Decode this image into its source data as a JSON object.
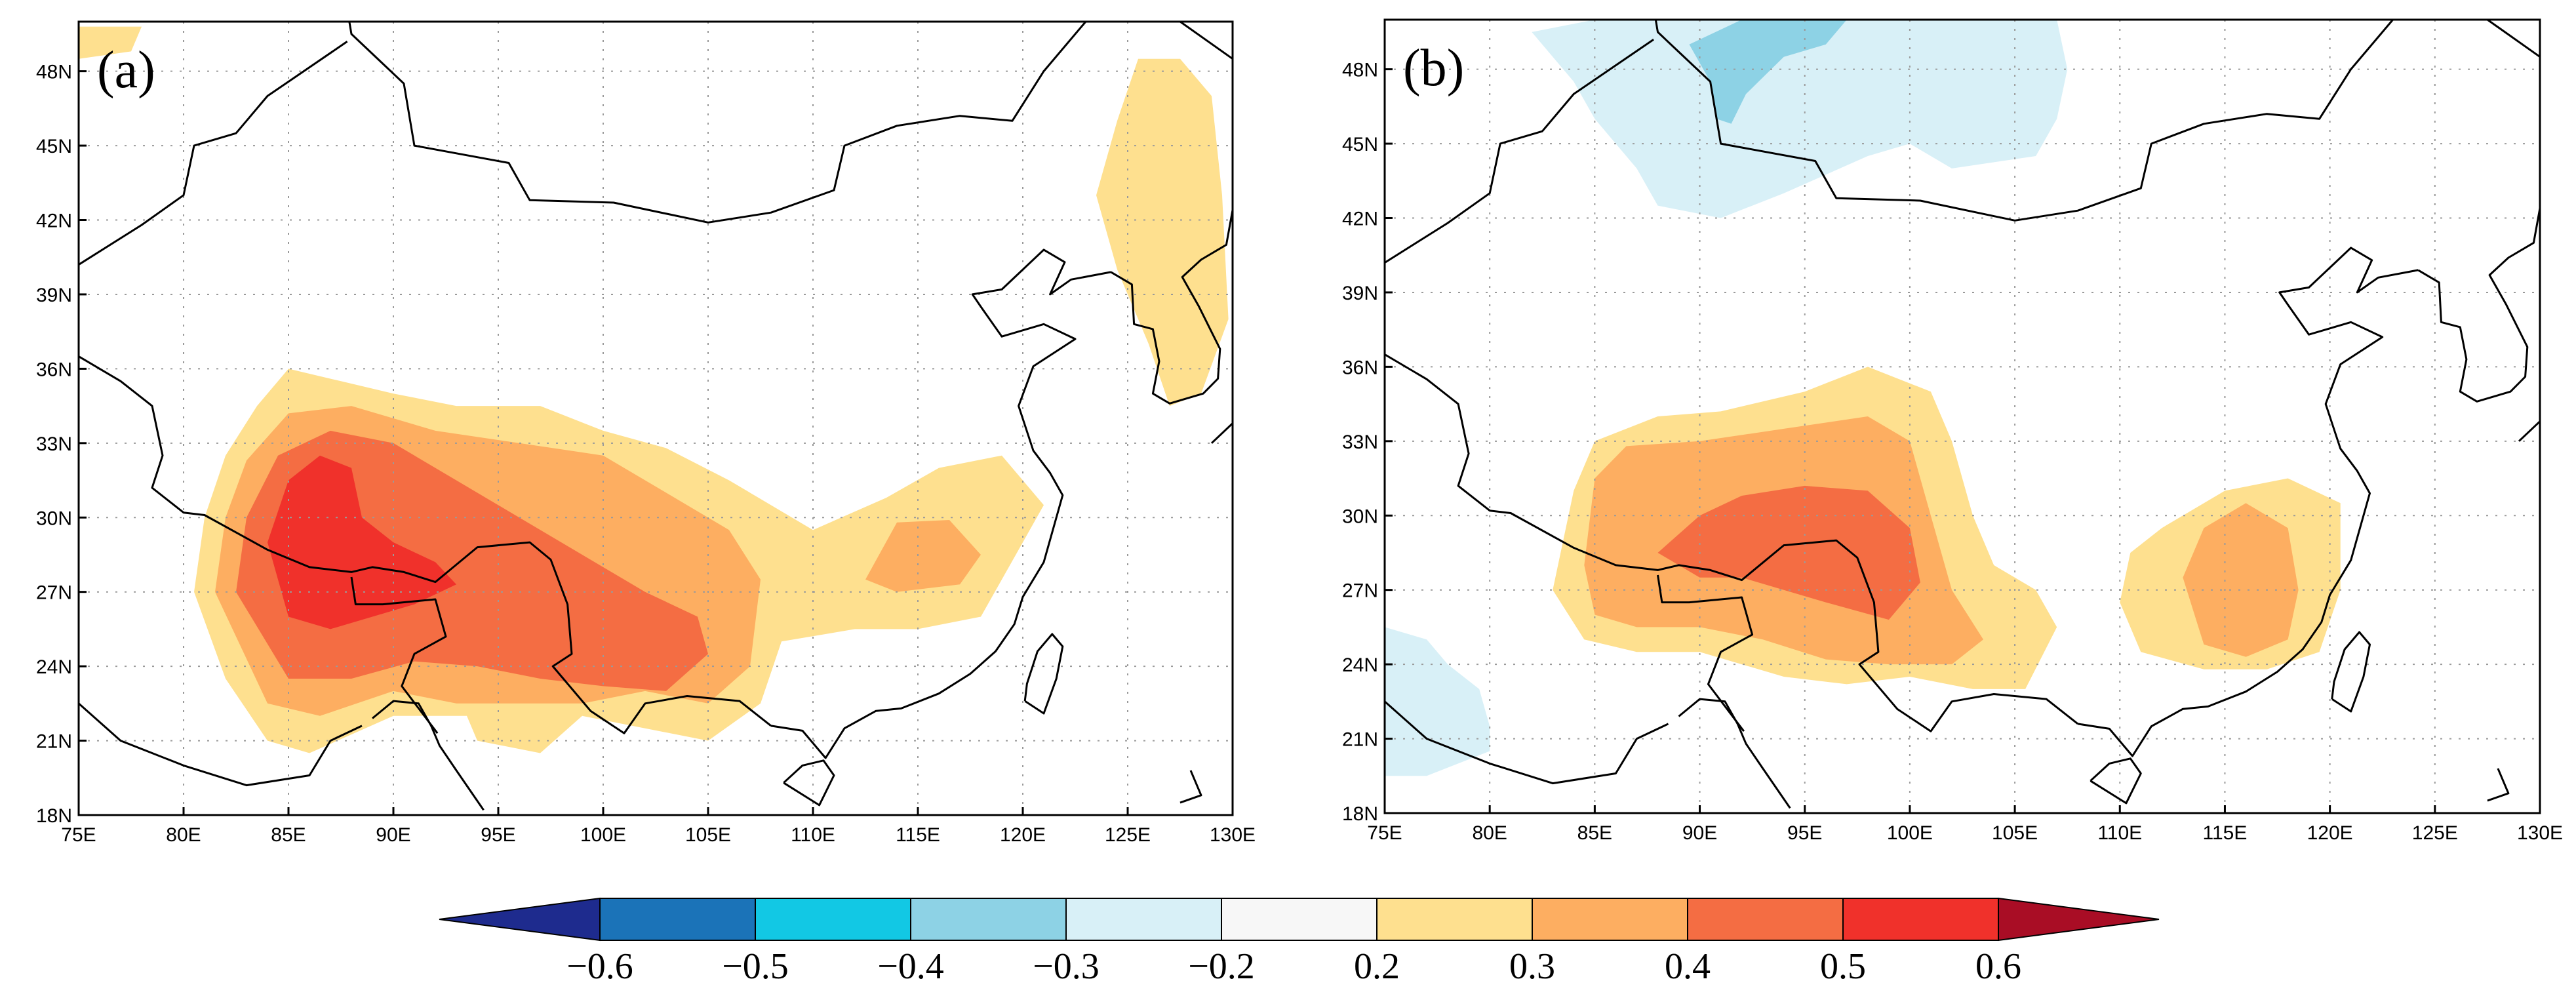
{
  "chart_data": [
    {
      "type": "heatmap",
      "panel_label": "(a)",
      "map_region": "China and surrounding region",
      "x_ticks": [
        "75E",
        "80E",
        "85E",
        "90E",
        "95E",
        "100E",
        "105E",
        "110E",
        "115E",
        "120E",
        "125E",
        "130E"
      ],
      "y_ticks": [
        "18N",
        "21N",
        "24N",
        "27N",
        "30N",
        "33N",
        "36N",
        "39N",
        "42N",
        "45N",
        "48N"
      ],
      "xlim": [
        75,
        130
      ],
      "ylim": [
        18,
        50
      ],
      "grid": true,
      "shaded_regions": [
        {
          "name": "region-a-0.2-0.3-tibet",
          "level": 0.2,
          "lonlat": [
            [
              80.5,
              27
            ],
            [
              81,
              30
            ],
            [
              82,
              32.5
            ],
            [
              83.5,
              34.5
            ],
            [
              85,
              36
            ],
            [
              87.5,
              35.5
            ],
            [
              90,
              35
            ],
            [
              93,
              34.5
            ],
            [
              97,
              34.5
            ],
            [
              100,
              33.5
            ],
            [
              103,
              32.8
            ],
            [
              106,
              31.5
            ],
            [
              110,
              29.5
            ],
            [
              113.5,
              30.8
            ],
            [
              116,
              32
            ],
            [
              119,
              32.5
            ],
            [
              121,
              30.5
            ],
            [
              120,
              29
            ],
            [
              118,
              26
            ],
            [
              115,
              25.5
            ],
            [
              112,
              25.5
            ],
            [
              108.5,
              25
            ],
            [
              107.5,
              22.5
            ],
            [
              105,
              21
            ],
            [
              102,
              21.5
            ],
            [
              99,
              22
            ],
            [
              97,
              20.5
            ],
            [
              94,
              21
            ],
            [
              93.5,
              22
            ],
            [
              90,
              22
            ],
            [
              86,
              20.5
            ],
            [
              84,
              21
            ],
            [
              82,
              23.5
            ]
          ]
        },
        {
          "name": "region-a-0.2-0.3-north",
          "level": 0.2,
          "lonlat": [
            [
              125.5,
              48.5
            ],
            [
              127.5,
              48.5
            ],
            [
              129,
              47
            ],
            [
              129.5,
              43
            ],
            [
              129.8,
              38
            ],
            [
              128.5,
              35
            ],
            [
              127,
              34.5
            ],
            [
              126,
              37
            ],
            [
              124.5,
              40
            ],
            [
              123.5,
              43
            ],
            [
              124.5,
              46
            ]
          ]
        },
        {
          "name": "region-a-0.2-0.3-corner",
          "level": 0.2,
          "lonlat": [
            [
              75,
              49.8
            ],
            [
              78,
              49.8
            ],
            [
              77.5,
              48.8
            ],
            [
              75,
              48.5
            ]
          ]
        },
        {
          "name": "region-a-0.3-0.4",
          "level": 0.3,
          "lonlat": [
            [
              81.5,
              27
            ],
            [
              82,
              30
            ],
            [
              83,
              32.3
            ],
            [
              85,
              34.2
            ],
            [
              88,
              34.5
            ],
            [
              92,
              33.5
            ],
            [
              96,
              33
            ],
            [
              100,
              32.5
            ],
            [
              103,
              31
            ],
            [
              106,
              29.5
            ],
            [
              107.5,
              27.5
            ],
            [
              107,
              24
            ],
            [
              105,
              22.5
            ],
            [
              102,
              23
            ],
            [
              99,
              22.5
            ],
            [
              96,
              22.5
            ],
            [
              93,
              22.5
            ],
            [
              90,
              23
            ],
            [
              86.5,
              22
            ],
            [
              84,
              22.5
            ]
          ]
        },
        {
          "name": "region-a-0.3-0.4-east",
          "level": 0.3,
          "lonlat": [
            [
              112.5,
              27.5
            ],
            [
              114,
              29.8
            ],
            [
              116.5,
              29.9
            ],
            [
              118,
              28.5
            ],
            [
              117,
              27.3
            ],
            [
              114,
              27
            ]
          ]
        },
        {
          "name": "region-a-0.4-0.5",
          "level": 0.4,
          "lonlat": [
            [
              82.5,
              27
            ],
            [
              83,
              30
            ],
            [
              84.5,
              32.5
            ],
            [
              87,
              33.5
            ],
            [
              90,
              33
            ],
            [
              93,
              31.5
            ],
            [
              96,
              30
            ],
            [
              99,
              28.5
            ],
            [
              102,
              27
            ],
            [
              104.5,
              26
            ],
            [
              105,
              24.5
            ],
            [
              103,
              23
            ],
            [
              100,
              23.2
            ],
            [
              97,
              23.5
            ],
            [
              94,
              24
            ],
            [
              91,
              24.2
            ],
            [
              88,
              23.5
            ],
            [
              85,
              23.5
            ]
          ]
        },
        {
          "name": "region-a-0.5-0.6",
          "level": 0.5,
          "lonlat": [
            [
              84,
              29
            ],
            [
              85,
              31.5
            ],
            [
              86.5,
              32.5
            ],
            [
              88,
              32
            ],
            [
              88.5,
              30
            ],
            [
              90,
              29
            ],
            [
              92,
              28.2
            ],
            [
              93,
              27.3
            ],
            [
              91,
              26.5
            ],
            [
              89,
              26
            ],
            [
              87,
              25.5
            ],
            [
              85,
              26
            ]
          ]
        }
      ]
    },
    {
      "type": "heatmap",
      "panel_label": "(b)",
      "map_region": "China and surrounding region",
      "x_ticks": [
        "75E",
        "80E",
        "85E",
        "90E",
        "95E",
        "100E",
        "105E",
        "110E",
        "115E",
        "120E",
        "125E",
        "130E"
      ],
      "y_ticks": [
        "18N",
        "21N",
        "24N",
        "27N",
        "30N",
        "33N",
        "36N",
        "39N",
        "42N",
        "45N",
        "48N"
      ],
      "xlim": [
        75,
        130
      ],
      "ylim": [
        18,
        50
      ],
      "grid": true,
      "shaded_regions": [
        {
          "name": "region-b-0.2-0.3-tibet",
          "level": 0.2,
          "lonlat": [
            [
              83,
              27
            ],
            [
              84,
              31
            ],
            [
              85,
              33
            ],
            [
              88,
              34
            ],
            [
              91,
              34.2
            ],
            [
              95,
              35
            ],
            [
              98,
              36
            ],
            [
              101,
              35
            ],
            [
              102,
              33
            ],
            [
              103,
              30
            ],
            [
              104,
              28
            ],
            [
              106,
              27
            ],
            [
              107,
              25.5
            ],
            [
              105.5,
              23
            ],
            [
              103,
              23
            ],
            [
              100,
              23.5
            ],
            [
              97,
              23.2
            ],
            [
              94,
              23.5
            ],
            [
              90,
              24.5
            ],
            [
              87,
              24.5
            ],
            [
              84.5,
              25
            ]
          ]
        },
        {
          "name": "region-b-0.2-0.3-east",
          "level": 0.2,
          "lonlat": [
            [
              110,
              26.5
            ],
            [
              110.5,
              28.5
            ],
            [
              112,
              29.5
            ],
            [
              115,
              31
            ],
            [
              118,
              31.5
            ],
            [
              120.5,
              30.5
            ],
            [
              120.5,
              27
            ],
            [
              119.5,
              24.5
            ],
            [
              117,
              23.8
            ],
            [
              114,
              23.8
            ],
            [
              111,
              24.5
            ]
          ]
        },
        {
          "name": "region-b-0.3-0.4-tibet",
          "level": 0.3,
          "lonlat": [
            [
              84.5,
              28
            ],
            [
              85,
              31.5
            ],
            [
              86.5,
              32.8
            ],
            [
              90,
              33
            ],
            [
              94,
              33.5
            ],
            [
              98,
              34
            ],
            [
              100,
              33
            ],
            [
              101,
              30
            ],
            [
              102,
              27
            ],
            [
              103.5,
              25
            ],
            [
              102,
              24
            ],
            [
              99,
              24
            ],
            [
              96,
              24.2
            ],
            [
              93,
              25
            ],
            [
              90,
              25.5
            ],
            [
              87,
              25.5
            ],
            [
              85,
              26
            ]
          ]
        },
        {
          "name": "region-b-0.3-0.4-east",
          "level": 0.3,
          "lonlat": [
            [
              113,
              27.5
            ],
            [
              114,
              29.5
            ],
            [
              116,
              30.5
            ],
            [
              118,
              29.5
            ],
            [
              118.5,
              27
            ],
            [
              118,
              25
            ],
            [
              116,
              24.3
            ],
            [
              114,
              24.8
            ]
          ]
        },
        {
          "name": "region-b-0.4-0.5",
          "level": 0.4,
          "lonlat": [
            [
              88,
              28.5
            ],
            [
              90,
              30
            ],
            [
              92,
              30.8
            ],
            [
              95,
              31.2
            ],
            [
              98,
              31
            ],
            [
              100,
              29.5
            ],
            [
              100.5,
              27.3
            ],
            [
              99,
              25.8
            ],
            [
              96,
              26.5
            ],
            [
              94,
              27
            ],
            [
              92,
              27.5
            ],
            [
              90,
              27.5
            ]
          ]
        },
        {
          "name": "region-b-neg-0.2-0.3-north",
          "level": -0.2,
          "lonlat": [
            [
              82,
              49.5
            ],
            [
              84,
              47.5
            ],
            [
              85,
              46
            ],
            [
              87,
              44
            ],
            [
              88,
              42.5
            ],
            [
              91,
              42
            ],
            [
              94,
              43
            ],
            [
              98,
              44.5
            ],
            [
              100,
              45
            ],
            [
              102,
              44
            ],
            [
              106,
              44.5
            ],
            [
              107,
              46
            ],
            [
              107.5,
              48
            ],
            [
              107,
              50
            ],
            [
              100,
              50
            ],
            [
              92,
              50
            ],
            [
              85,
              50
            ]
          ]
        },
        {
          "name": "region-b-neg-0.2-0.3-southwest",
          "level": -0.2,
          "lonlat": [
            [
              75,
              25.5
            ],
            [
              77,
              25
            ],
            [
              78,
              24
            ],
            [
              79.5,
              23
            ],
            [
              80,
              21.5
            ],
            [
              80,
              20.5
            ],
            [
              77,
              19.5
            ],
            [
              75,
              19.5
            ]
          ]
        },
        {
          "name": "region-b-neg-0.3-0.4-north",
          "level": -0.3,
          "lonlat": [
            [
              89.5,
              49
            ],
            [
              90.5,
              47.5
            ],
            [
              90.8,
              46
            ],
            [
              91.5,
              45.8
            ],
            [
              92.2,
              47
            ],
            [
              94,
              48.5
            ],
            [
              96,
              49
            ],
            [
              97,
              50
            ],
            [
              92,
              50
            ]
          ]
        }
      ]
    },
    {
      "type": "colorbar",
      "levels": [
        -0.6,
        -0.5,
        -0.4,
        -0.3,
        -0.2,
        0.2,
        0.3,
        0.4,
        0.5,
        0.6
      ],
      "tick_labels": [
        "−0.6",
        "−0.5",
        "−0.4",
        "−0.3",
        "−0.2",
        "0.2",
        "0.3",
        "0.4",
        "0.5",
        "0.6"
      ],
      "colors": [
        "#1e2b8e",
        "#1b73b8",
        "#12c8e4",
        "#8dd2e5",
        "#d8f0f7",
        "#f7f7f7",
        "#fee08f",
        "#fdae61",
        "#f46d43",
        "#f0312b",
        "#a90d25"
      ]
    }
  ]
}
